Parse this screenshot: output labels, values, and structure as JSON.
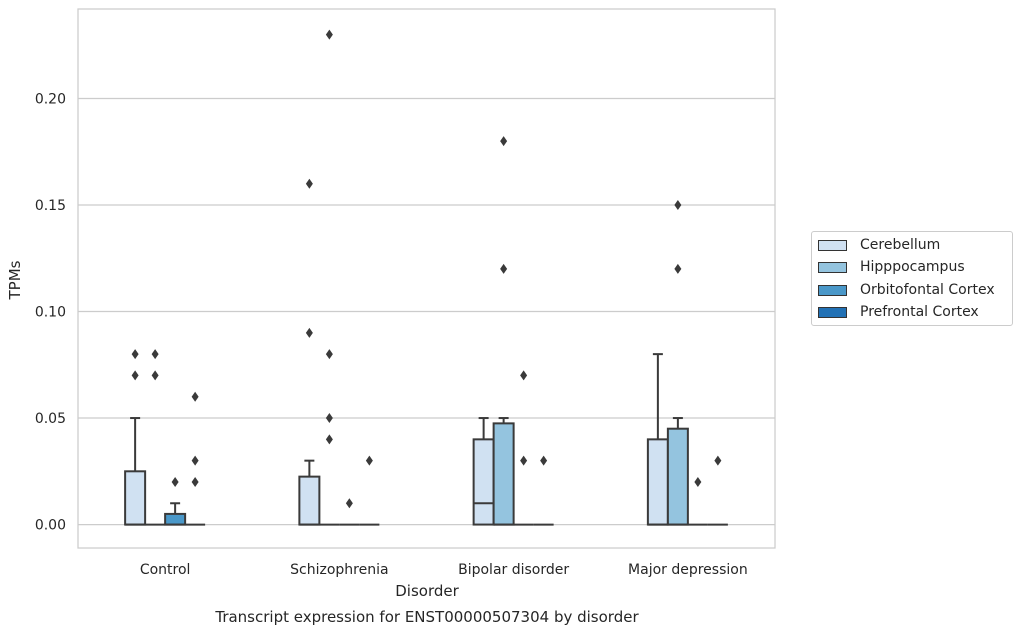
{
  "chart_data": {
    "type": "box",
    "title": "",
    "xlabel": "Disorder",
    "ylabel": "TPMs",
    "caption": "Transcript expression for ENST00000507304 by disorder",
    "categories": [
      "Control",
      "Schizophrenia",
      "Bipolar disorder",
      "Major depression"
    ],
    "ylim": [
      -0.011,
      0.242
    ],
    "yticks": [
      0.0,
      0.05,
      0.1,
      0.15,
      0.2
    ],
    "ytick_labels": [
      "0.00",
      "0.05",
      "0.10",
      "0.15",
      "0.20"
    ],
    "grid": "horizontal",
    "legend_position": "right",
    "series": [
      {
        "name": "Cerebellum",
        "color": "#d0e1f2",
        "boxes": [
          {
            "q1": 0.0,
            "median": 0.0,
            "q3": 0.025,
            "whisker_low": 0.0,
            "whisker_high": 0.05,
            "outliers": [
              0.07,
              0.08
            ]
          },
          {
            "q1": 0.0,
            "median": 0.0,
            "q3": 0.0225,
            "whisker_low": 0.0,
            "whisker_high": 0.03,
            "outliers": [
              0.09,
              0.16
            ]
          },
          {
            "q1": 0.0,
            "median": 0.01,
            "q3": 0.04,
            "whisker_low": 0.0,
            "whisker_high": 0.05,
            "outliers": []
          },
          {
            "q1": 0.0,
            "median": 0.0,
            "q3": 0.04,
            "whisker_low": 0.0,
            "whisker_high": 0.08,
            "outliers": []
          }
        ]
      },
      {
        "name": "Hipppocampus",
        "color": "#94c4df",
        "boxes": [
          {
            "q1": 0.0,
            "median": 0.0,
            "q3": 0.0,
            "whisker_low": 0.0,
            "whisker_high": 0.0,
            "outliers": [
              0.07,
              0.08
            ]
          },
          {
            "q1": 0.0,
            "median": 0.0,
            "q3": 0.0,
            "whisker_low": 0.0,
            "whisker_high": 0.0,
            "outliers": [
              0.04,
              0.05,
              0.08,
              0.23
            ]
          },
          {
            "q1": 0.0,
            "median": 0.0,
            "q3": 0.0475,
            "whisker_low": 0.0,
            "whisker_high": 0.05,
            "outliers": [
              0.12,
              0.18
            ]
          },
          {
            "q1": 0.0,
            "median": 0.0,
            "q3": 0.045,
            "whisker_low": 0.0,
            "whisker_high": 0.05,
            "outliers": [
              0.12,
              0.15
            ]
          }
        ]
      },
      {
        "name": "Orbitofontal Cortex",
        "color": "#4a98c9",
        "boxes": [
          {
            "q1": 0.0,
            "median": 0.0,
            "q3": 0.005,
            "whisker_low": 0.0,
            "whisker_high": 0.01,
            "outliers": [
              0.02
            ]
          },
          {
            "q1": 0.0,
            "median": 0.0,
            "q3": 0.0,
            "whisker_low": 0.0,
            "whisker_high": 0.0,
            "outliers": [
              0.01
            ]
          },
          {
            "q1": 0.0,
            "median": 0.0,
            "q3": 0.0,
            "whisker_low": 0.0,
            "whisker_high": 0.0,
            "outliers": [
              0.03,
              0.07
            ]
          },
          {
            "q1": 0.0,
            "median": 0.0,
            "q3": 0.0,
            "whisker_low": 0.0,
            "whisker_high": 0.0,
            "outliers": [
              0.02
            ]
          }
        ]
      },
      {
        "name": "Prefrontal Cortex",
        "color": "#2171b5",
        "boxes": [
          {
            "q1": 0.0,
            "median": 0.0,
            "q3": 0.0,
            "whisker_low": 0.0,
            "whisker_high": 0.0,
            "outliers": [
              0.02,
              0.03,
              0.06
            ]
          },
          {
            "q1": 0.0,
            "median": 0.0,
            "q3": 0.0,
            "whisker_low": 0.0,
            "whisker_high": 0.0,
            "outliers": [
              0.03
            ]
          },
          {
            "q1": 0.0,
            "median": 0.0,
            "q3": 0.0,
            "whisker_low": 0.0,
            "whisker_high": 0.0,
            "outliers": [
              0.03
            ]
          },
          {
            "q1": 0.0,
            "median": 0.0,
            "q3": 0.0,
            "whisker_low": 0.0,
            "whisker_high": 0.0,
            "outliers": [
              0.03
            ]
          }
        ]
      }
    ]
  }
}
